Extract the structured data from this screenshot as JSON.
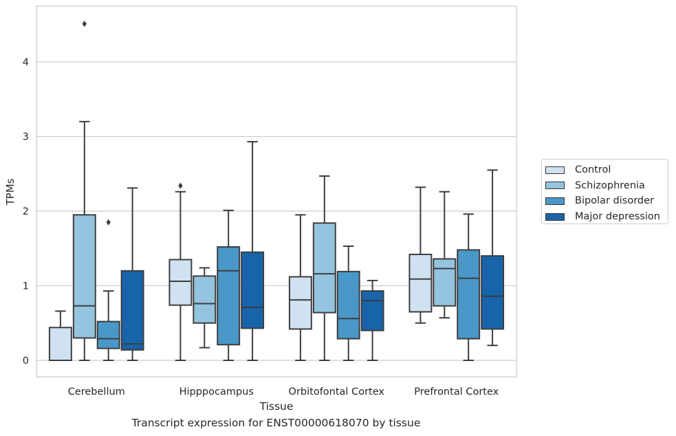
{
  "chart_data": {
    "type": "box",
    "caption": "Transcript expression for ENST00000618070 by tissue",
    "xlabel": "Tissue",
    "ylabel": "TPMs",
    "ylim": [
      -0.22,
      4.75
    ],
    "yticks": [
      0,
      1,
      2,
      3,
      4
    ],
    "grid": "horizontal",
    "legend_position": "right",
    "categories": [
      "Cerebellum",
      "Hipppocampus",
      "Orbitofontal Cortex",
      "Prefrontal Cortex"
    ],
    "series": [
      {
        "name": "Control",
        "color": "#d0e1f2",
        "boxes": [
          {
            "whislo": 0,
            "q1": 0,
            "med": 0,
            "q3": 0.44,
            "whishi": 0.66,
            "fliers": []
          },
          {
            "whislo": 0,
            "q1": 0.74,
            "med": 1.06,
            "q3": 1.35,
            "whishi": 2.26,
            "fliers": [
              2.34
            ]
          },
          {
            "whislo": 0,
            "q1": 0.42,
            "med": 0.81,
            "q3": 1.12,
            "whishi": 1.95,
            "fliers": []
          },
          {
            "whislo": 0.5,
            "q1": 0.65,
            "med": 1.09,
            "q3": 1.42,
            "whishi": 2.32,
            "fliers": []
          }
        ]
      },
      {
        "name": "Schizophrenia",
        "color": "#94c4df",
        "boxes": [
          {
            "whislo": 0,
            "q1": 0.3,
            "med": 0.73,
            "q3": 1.95,
            "whishi": 3.2,
            "fliers": [
              4.51
            ]
          },
          {
            "whislo": 0.17,
            "q1": 0.5,
            "med": 0.76,
            "q3": 1.13,
            "whishi": 1.24,
            "fliers": []
          },
          {
            "whislo": 0,
            "q1": 0.64,
            "med": 1.16,
            "q3": 1.84,
            "whishi": 2.47,
            "fliers": []
          },
          {
            "whislo": 0.57,
            "q1": 0.73,
            "med": 1.23,
            "q3": 1.36,
            "whishi": 2.26,
            "fliers": []
          }
        ]
      },
      {
        "name": "Bipolar disorder",
        "color": "#4a98c9",
        "boxes": [
          {
            "whislo": 0,
            "q1": 0.16,
            "med": 0.29,
            "q3": 0.52,
            "whishi": 0.93,
            "fliers": [
              1.85
            ]
          },
          {
            "whislo": 0,
            "q1": 0.21,
            "med": 1.2,
            "q3": 1.52,
            "whishi": 2.01,
            "fliers": []
          },
          {
            "whislo": 0,
            "q1": 0.29,
            "med": 0.56,
            "q3": 1.19,
            "whishi": 1.53,
            "fliers": []
          },
          {
            "whislo": 0,
            "q1": 0.29,
            "med": 1.1,
            "q3": 1.48,
            "whishi": 1.96,
            "fliers": []
          }
        ]
      },
      {
        "name": "Major depression",
        "color": "#1764ab",
        "boxes": [
          {
            "whislo": 0,
            "q1": 0.14,
            "med": 0.22,
            "q3": 1.2,
            "whishi": 2.31,
            "fliers": []
          },
          {
            "whislo": 0,
            "q1": 0.43,
            "med": 0.71,
            "q3": 1.45,
            "whishi": 2.93,
            "fliers": []
          },
          {
            "whislo": 0,
            "q1": 0.4,
            "med": 0.8,
            "q3": 0.93,
            "whishi": 1.07,
            "fliers": []
          },
          {
            "whislo": 0.2,
            "q1": 0.42,
            "med": 0.86,
            "q3": 1.4,
            "whishi": 2.55,
            "fliers": []
          }
        ]
      }
    ]
  }
}
